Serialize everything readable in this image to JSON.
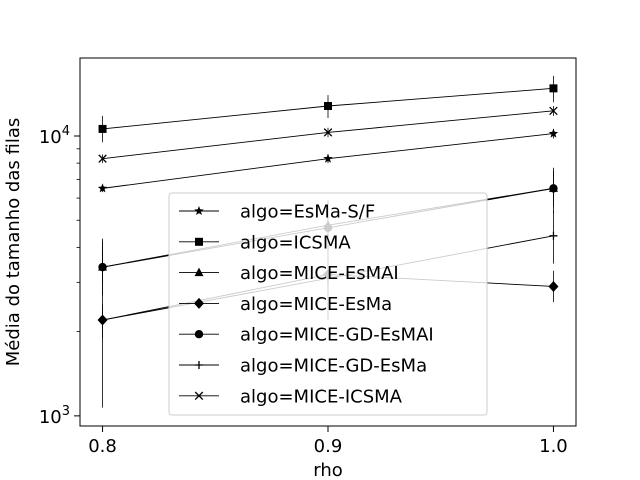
{
  "chart_data": {
    "type": "line",
    "title": "",
    "xlabel": "rho",
    "ylabel": "Média do tamanho das filas",
    "x": [
      0.8,
      0.9,
      1.0
    ],
    "x_ticks": [
      "0.8",
      "0.9",
      "1.0"
    ],
    "xlim": [
      0.79,
      1.01
    ],
    "ylim": [
      920,
      19000
    ],
    "yscale": "log",
    "y_ticks": [
      {
        "value": 1000,
        "base": "10",
        "exp": "3"
      },
      {
        "value": 10000,
        "base": "10",
        "exp": "4"
      }
    ],
    "grid": false,
    "legend_position": "lower-center",
    "color": "#000000",
    "legend_border": "#cccccc",
    "series": [
      {
        "name": "algo=EsMa-S/F",
        "marker": "star",
        "values": [
          6500,
          8300,
          10200
        ],
        "err_low": [
          6300,
          8000,
          9800
        ],
        "err_high": [
          6700,
          8600,
          10600
        ]
      },
      {
        "name": "algo=ICSMA",
        "marker": "square",
        "values": [
          10600,
          12800,
          14800
        ],
        "err_low": [
          9500,
          11600,
          13200
        ],
        "err_high": [
          11800,
          14000,
          16400
        ]
      },
      {
        "name": "algo=MICE-EsMAI",
        "marker": "triangle",
        "values": [
          3400,
          4800,
          6500
        ],
        "err_low": [
          2700,
          3900,
          5300
        ],
        "err_high": [
          4200,
          5900,
          7700
        ]
      },
      {
        "name": "algo=MICE-EsMa",
        "marker": "diamond",
        "values": [
          2200,
          3200,
          2900
        ],
        "err_low": [
          1900,
          2800,
          2550
        ],
        "err_high": [
          2500,
          3600,
          3300
        ]
      },
      {
        "name": "algo=MICE-GD-EsMAI",
        "marker": "circle",
        "values": [
          3400,
          4700,
          6500
        ],
        "err_low": [
          3000,
          4100,
          5600
        ],
        "err_high": [
          3850,
          5300,
          7500
        ]
      },
      {
        "name": "algo=MICE-GD-EsMa",
        "marker": "plus",
        "values": [
          2200,
          3100,
          4400
        ],
        "err_low": [
          1070,
          2200,
          3500
        ],
        "err_high": [
          4300,
          4100,
          5400
        ]
      },
      {
        "name": "algo=MICE-ICSMA",
        "marker": "x",
        "values": [
          8300,
          10300,
          12300
        ],
        "err_low": [
          8000,
          9900,
          11800
        ],
        "err_high": [
          8600,
          10700,
          12800
        ]
      }
    ]
  }
}
